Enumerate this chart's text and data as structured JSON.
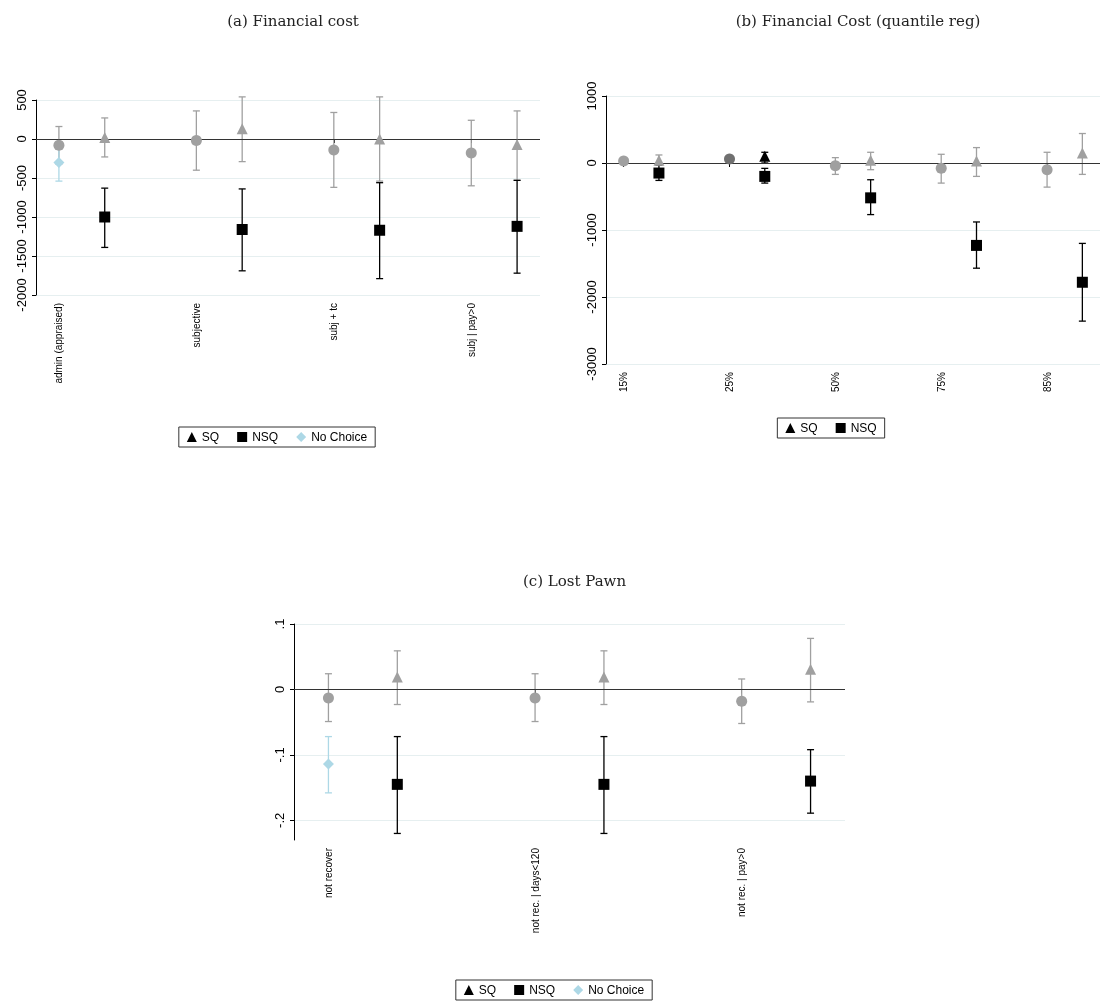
{
  "chart_data": [
    {
      "type": "scatter",
      "title": "(a) Financial cost",
      "categories": [
        "admin (appraised)",
        null,
        null,
        "subjective",
        null,
        null,
        "subj + tc",
        null,
        null,
        "subj | pay>0",
        null
      ],
      "ylim": [
        -2000,
        500
      ],
      "yticks": [
        -2000,
        -1500,
        -1000,
        -500,
        0,
        500
      ],
      "grid": "y",
      "legend": "bottom",
      "ref_lines": [
        {
          "axis": "y",
          "value": 0,
          "color": "#333333"
        }
      ],
      "series": [
        {
          "color": "#a0a0a0",
          "marker": "circle",
          "values": [
            -80,
            null,
            null,
            -20,
            null,
            null,
            -140,
            null,
            null,
            -180,
            null
          ],
          "errors": [
            [
              -320,
              160
            ],
            null,
            null,
            [
              -400,
              360
            ],
            null,
            null,
            [
              -620,
              340
            ],
            null,
            null,
            [
              -600,
              240
            ],
            null
          ]
        },
        {
          "color": "#a0a0a0",
          "marker": "triangle",
          "values": [
            null,
            20,
            null,
            null,
            130,
            null,
            null,
            0,
            null,
            null,
            -70
          ],
          "errors": [
            null,
            [
              -230,
              270
            ],
            null,
            null,
            [
              -290,
              540
            ],
            null,
            null,
            [
              -540,
              540
            ],
            null,
            null,
            [
              -530,
              360
            ]
          ]
        },
        {
          "name": "SQ",
          "color": "#000000",
          "marker": "triangle",
          "values": [
            null,
            null,
            null,
            null,
            null,
            null,
            null,
            null,
            null,
            null,
            null
          ]
        },
        {
          "name": "NSQ",
          "color": "#000000",
          "marker": "square",
          "values": [
            null,
            -1000,
            null,
            null,
            -1160,
            null,
            null,
            -1170,
            null,
            null,
            -1120
          ],
          "errors": [
            null,
            [
              -1390,
              -630
            ],
            null,
            null,
            [
              -1690,
              -640
            ],
            null,
            null,
            [
              -1790,
              -560
            ],
            null,
            null,
            [
              -1720,
              -530
            ]
          ]
        },
        {
          "name": "No Choice",
          "color": "#add8e6",
          "marker": "diamond",
          "values": [
            -300,
            null,
            null,
            null,
            null,
            null,
            null,
            null,
            null,
            null,
            null
          ],
          "errors": [
            [
              -540,
              -50
            ],
            null,
            null,
            null,
            null,
            null,
            null,
            null,
            null,
            null,
            null
          ]
        }
      ]
    },
    {
      "type": "scatter",
      "title": "(b) Financial Cost (quantile reg)",
      "categories": [
        "15%",
        null,
        null,
        "25%",
        null,
        null,
        "50%",
        null,
        null,
        "75%",
        null,
        null,
        "85%",
        null
      ],
      "ylim": [
        -3000,
        1000
      ],
      "yticks": [
        -3000,
        -2000,
        -1000,
        0,
        1000
      ],
      "grid": "y",
      "legend": "bottom",
      "ref_lines": [
        {
          "axis": "y",
          "value": 0,
          "color": "#333333"
        }
      ],
      "series": [
        {
          "color": "#a0a0a0",
          "marker": "circle",
          "values": [
            30,
            null,
            null,
            null,
            null,
            null,
            -40,
            null,
            null,
            -80,
            null,
            null,
            -100,
            null
          ],
          "errors": [
            null,
            null,
            null,
            null,
            null,
            null,
            [
              -170,
              80
            ],
            null,
            null,
            [
              -300,
              130
            ],
            null,
            null,
            [
              -360,
              160
            ],
            null
          ]
        },
        {
          "color": "#707070",
          "marker": "circle",
          "values": [
            null,
            null,
            null,
            60,
            null,
            null,
            null,
            null,
            null,
            null,
            null,
            null,
            null,
            null
          ]
        },
        {
          "color": "#a0a0a0",
          "marker": "triangle",
          "values": [
            null,
            40,
            null,
            null,
            null,
            null,
            null,
            40,
            null,
            null,
            30,
            null,
            null,
            150
          ],
          "errors": [
            null,
            [
              -10,
              120
            ],
            null,
            null,
            null,
            null,
            null,
            [
              -100,
              160
            ],
            null,
            null,
            [
              -200,
              230
            ],
            null,
            null,
            [
              -170,
              440
            ]
          ]
        },
        {
          "name": "SQ",
          "color": "#000000",
          "marker": "triangle",
          "values": [
            null,
            null,
            null,
            null,
            100,
            null,
            null,
            null,
            null,
            null,
            null,
            null,
            null,
            null
          ],
          "errors": [
            null,
            null,
            null,
            null,
            [
              0,
              160
            ],
            null,
            null,
            null,
            null,
            null,
            null,
            null,
            null,
            null
          ]
        },
        {
          "name": "NSQ",
          "color": "#000000",
          "marker": "square",
          "values": [
            null,
            -150,
            null,
            null,
            -200,
            null,
            null,
            -520,
            null,
            null,
            -1230,
            null,
            null,
            -1780
          ],
          "errors": [
            null,
            [
              -260,
              -30
            ],
            null,
            null,
            [
              -300,
              -80
            ],
            null,
            null,
            [
              -770,
              -250
            ],
            null,
            null,
            [
              -1570,
              -880
            ],
            null,
            null,
            [
              -2360,
              -1200
            ]
          ]
        }
      ]
    },
    {
      "type": "scatter",
      "title": "(c) Lost Pawn",
      "categories": [
        "not recover",
        null,
        null,
        "not rec. | days<120",
        null,
        null,
        "not rec. | pay>0",
        null
      ],
      "ylim": [
        -0.23,
        0.1
      ],
      "yticks": [
        {
          "value": -0.2,
          "label": "-.2"
        },
        {
          "value": -0.1,
          "label": "-.1"
        },
        0,
        {
          "value": 0.1,
          "label": ".1"
        }
      ],
      "grid": "y",
      "legend": "bottom",
      "ref_lines": [
        {
          "axis": "y",
          "value": 0,
          "color": "#333333"
        }
      ],
      "series": [
        {
          "color": "#a0a0a0",
          "marker": "circle",
          "values": [
            -0.013,
            null,
            null,
            -0.013,
            null,
            null,
            -0.018,
            null
          ],
          "errors": [
            [
              -0.049,
              0.024
            ],
            null,
            null,
            [
              -0.049,
              0.024
            ],
            null,
            null,
            [
              -0.052,
              0.016
            ],
            null
          ]
        },
        {
          "color": "#a0a0a0",
          "marker": "triangle",
          "values": [
            null,
            0.019,
            null,
            null,
            0.019,
            null,
            null,
            0.031
          ],
          "errors": [
            null,
            [
              -0.023,
              0.059
            ],
            null,
            null,
            [
              -0.023,
              0.059
            ],
            null,
            null,
            [
              -0.019,
              0.078
            ]
          ]
        },
        {
          "name": "SQ",
          "color": "#000000",
          "marker": "triangle",
          "values": [
            null,
            null,
            null,
            null,
            null,
            null,
            null,
            null
          ]
        },
        {
          "name": "NSQ",
          "color": "#000000",
          "marker": "square",
          "values": [
            null,
            -0.145,
            null,
            null,
            -0.145,
            null,
            null,
            -0.14
          ],
          "errors": [
            null,
            [
              -0.22,
              -0.072
            ],
            null,
            null,
            [
              -0.22,
              -0.072
            ],
            null,
            null,
            [
              -0.189,
              -0.092
            ]
          ]
        },
        {
          "name": "No Choice",
          "color": "#add8e6",
          "marker": "diamond",
          "values": [
            -0.114,
            null,
            null,
            null,
            null,
            null,
            null,
            null
          ],
          "errors": [
            [
              -0.158,
              -0.072
            ],
            null,
            null,
            null,
            null,
            null,
            null,
            null
          ]
        }
      ]
    }
  ]
}
